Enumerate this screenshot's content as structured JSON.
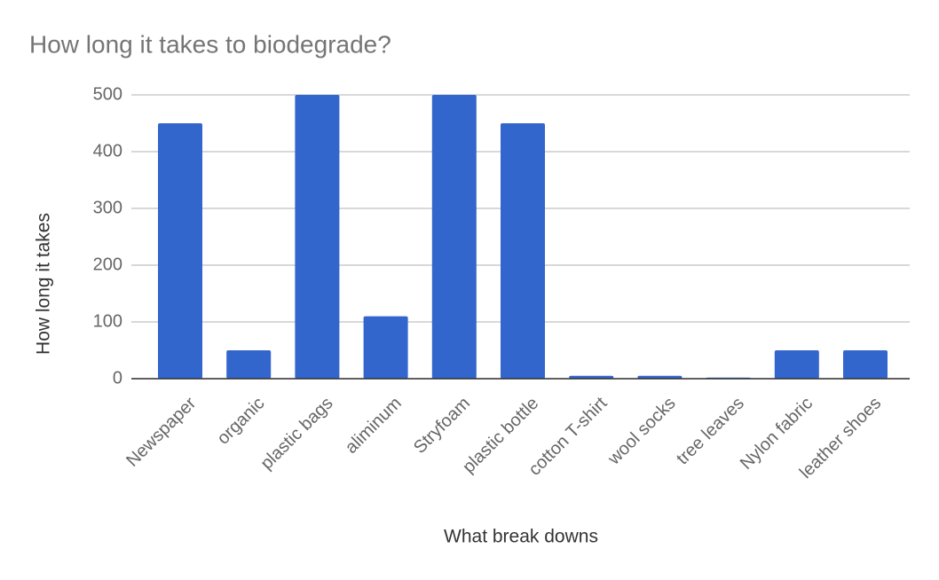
{
  "chart_data": {
    "type": "bar",
    "title": "How long it takes to biodegrade?",
    "x_label": "What break downs",
    "y_label": "How long it takes",
    "categories": [
      "Newspaper",
      "organic",
      "plastic bags",
      "aliminum",
      "Stryfoam",
      "plastic bottle",
      "cotton T-shirt",
      "wool socks",
      "tree leaves",
      "Nylon fabric",
      "leather shoes"
    ],
    "values": [
      450,
      50,
      500,
      110,
      500,
      450,
      5,
      5,
      2,
      50,
      50
    ],
    "color": "#3366cc",
    "ylim": [
      0,
      500
    ],
    "yticks": [
      0,
      100,
      200,
      300,
      400,
      500
    ],
    "grid": true
  }
}
